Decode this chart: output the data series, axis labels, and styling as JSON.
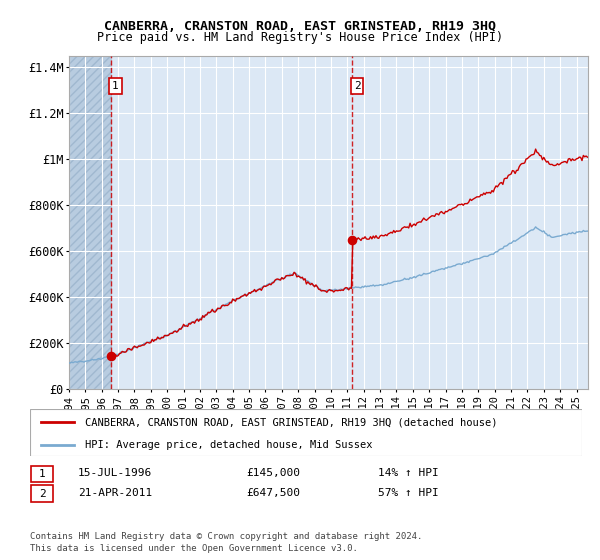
{
  "title": "CANBERRA, CRANSTON ROAD, EAST GRINSTEAD, RH19 3HQ",
  "subtitle": "Price paid vs. HM Land Registry's House Price Index (HPI)",
  "ylabel_ticks": [
    "£0",
    "£200K",
    "£400K",
    "£600K",
    "£800K",
    "£1M",
    "£1.2M",
    "£1.4M"
  ],
  "ytick_values": [
    0,
    200000,
    400000,
    600000,
    800000,
    1000000,
    1200000,
    1400000
  ],
  "ylim": [
    0,
    1450000
  ],
  "sale1_date": 1996.54,
  "sale1_price": 145000,
  "sale2_date": 2011.3,
  "sale2_price": 647500,
  "house_color": "#cc0000",
  "hpi_color": "#7aaad0",
  "legend_house": "CANBERRA, CRANSTON ROAD, EAST GRINSTEAD, RH19 3HQ (detached house)",
  "legend_hpi": "HPI: Average price, detached house, Mid Sussex",
  "footer": "Contains HM Land Registry data © Crown copyright and database right 2024.\nThis data is licensed under the Open Government Licence v3.0.",
  "xlim_start": 1994.0,
  "xlim_end": 2025.7,
  "plot_bg": "#dce8f5",
  "hatch_color": "#b8cce0",
  "grid_color": "#ffffff"
}
